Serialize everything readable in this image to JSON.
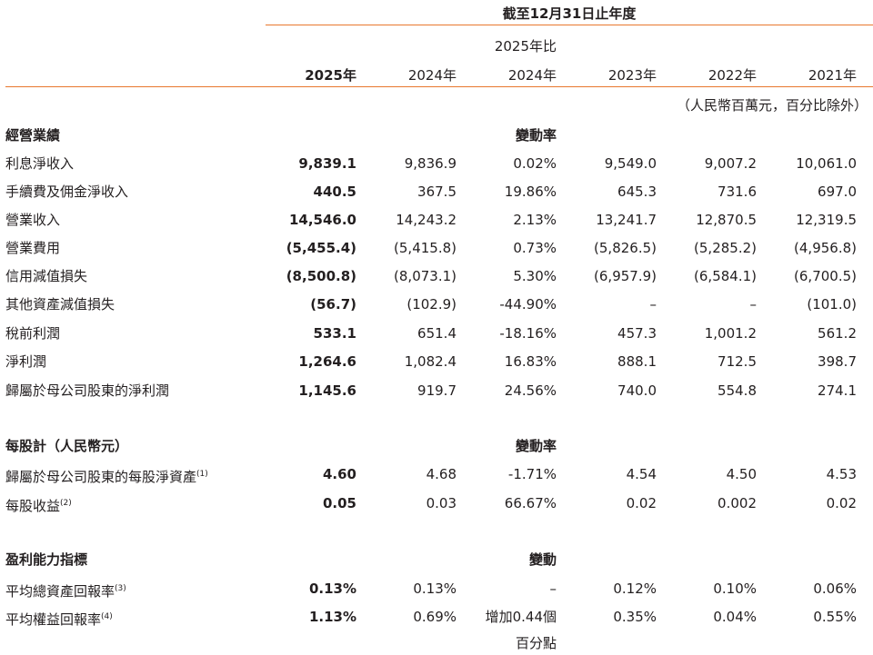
{
  "header": {
    "period": "截至12月31日止年度",
    "compare_label": "2025年比",
    "years": [
      "2025年",
      "2024年",
      "2024年",
      "2023年",
      "2022年",
      "2021年"
    ],
    "unit_note": "（人民幣百萬元，百分比除外）"
  },
  "sections": [
    {
      "title": "經營業績",
      "change_header": "變動率",
      "rows": [
        {
          "label": "利息淨收入",
          "sup": "",
          "values": [
            "9,839.1",
            "9,836.9",
            "0.02%",
            "9,549.0",
            "9,007.2",
            "10,061.0"
          ]
        },
        {
          "label": "手續費及佣金淨收入",
          "sup": "",
          "values": [
            "440.5",
            "367.5",
            "19.86%",
            "645.3",
            "731.6",
            "697.0"
          ]
        },
        {
          "label": "營業收入",
          "sup": "",
          "values": [
            "14,546.0",
            "14,243.2",
            "2.13%",
            "13,241.7",
            "12,870.5",
            "12,319.5"
          ]
        },
        {
          "label": "營業費用",
          "sup": "",
          "values": [
            "(5,455.4)",
            "(5,415.8)",
            "0.73%",
            "(5,826.5)",
            "(5,285.2)",
            "(4,956.8)"
          ]
        },
        {
          "label": "信用減值損失",
          "sup": "",
          "values": [
            "(8,500.8)",
            "(8,073.1)",
            "5.30%",
            "(6,957.9)",
            "(6,584.1)",
            "(6,700.5)"
          ]
        },
        {
          "label": "其他資產減值損失",
          "sup": "",
          "values": [
            "(56.7)",
            "(102.9)",
            "-44.90%",
            "–",
            "–",
            "(101.0)"
          ]
        },
        {
          "label": "稅前利潤",
          "sup": "",
          "values": [
            "533.1",
            "651.4",
            "-18.16%",
            "457.3",
            "1,001.2",
            "561.2"
          ]
        },
        {
          "label": "淨利潤",
          "sup": "",
          "values": [
            "1,264.6",
            "1,082.4",
            "16.83%",
            "888.1",
            "712.5",
            "398.7"
          ]
        },
        {
          "label": "歸屬於母公司股東的淨利潤",
          "sup": "",
          "values": [
            "1,145.6",
            "919.7",
            "24.56%",
            "740.0",
            "554.8",
            "274.1"
          ]
        }
      ]
    },
    {
      "title": "每股計（人民幣元）",
      "change_header": "變動率",
      "rows": [
        {
          "label": "歸屬於母公司股東的每股淨資產",
          "sup": "(1)",
          "values": [
            "4.60",
            "4.68",
            "-1.71%",
            "4.54",
            "4.50",
            "4.53"
          ]
        },
        {
          "label": "每股收益",
          "sup": "(2)",
          "values": [
            "0.05",
            "0.03",
            "66.67%",
            "0.02",
            "0.002",
            "0.02"
          ]
        }
      ]
    },
    {
      "title": "盈利能力指標",
      "change_header": "變動",
      "rows": [
        {
          "label": "平均總資產回報率",
          "sup": "(3)",
          "values": [
            "0.13%",
            "0.13%",
            "–",
            "0.12%",
            "0.10%",
            "0.06%"
          ]
        },
        {
          "label": "平均權益回報率",
          "sup": "(4)",
          "values": [
            "1.13%",
            "0.69%",
            "增加0.44個",
            "0.35%",
            "0.04%",
            "0.55%"
          ],
          "change_line2": "百分點"
        }
      ]
    }
  ]
}
